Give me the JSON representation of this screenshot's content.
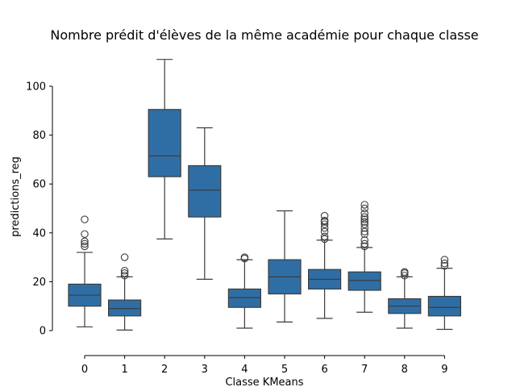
{
  "chart_data": {
    "type": "boxplot",
    "title": "Nombre prédit d'élèves de la même académie pour chaque classe",
    "xlabel": "Classe KMeans",
    "ylabel": "predictions_reg",
    "ylim": [
      -10,
      115
    ],
    "yticks": [
      0,
      20,
      40,
      60,
      80,
      100
    ],
    "categories": [
      "0",
      "1",
      "2",
      "3",
      "4",
      "5",
      "6",
      "7",
      "8",
      "9"
    ],
    "box_color": "#2f6ea5",
    "grid": false,
    "boxes": [
      {
        "category": "0",
        "whisker_low": 1.5,
        "q1": 10,
        "median": 14.5,
        "q3": 19,
        "whisker_high": 32,
        "outliers": [
          34.5,
          35.5,
          36.5,
          39.5,
          45.5
        ]
      },
      {
        "category": "1",
        "whisker_low": 0.2,
        "q1": 6,
        "median": 9,
        "q3": 12.5,
        "whisker_high": 22,
        "outliers": [
          22.5,
          23.5,
          24.5,
          30
        ]
      },
      {
        "category": "2",
        "whisker_low": 37.5,
        "q1": 63,
        "median": 71.5,
        "q3": 90.5,
        "whisker_high": 111,
        "outliers": []
      },
      {
        "category": "3",
        "whisker_low": 21,
        "q1": 46.5,
        "median": 57.5,
        "q3": 67.5,
        "whisker_high": 83,
        "outliers": []
      },
      {
        "category": "4",
        "whisker_low": 1,
        "q1": 9.5,
        "median": 13.5,
        "q3": 17,
        "whisker_high": 29,
        "outliers": [
          29.5,
          30
        ]
      },
      {
        "category": "5",
        "whisker_low": 3.5,
        "q1": 15,
        "median": 22,
        "q3": 29,
        "whisker_high": 49,
        "outliers": []
      },
      {
        "category": "6",
        "whisker_low": 5,
        "q1": 17,
        "median": 21,
        "q3": 25,
        "whisker_high": 37,
        "outliers": [
          37.5,
          38.5,
          40.5,
          42,
          43.5,
          44.5,
          45,
          47
        ]
      },
      {
        "category": "7",
        "whisker_low": 7.5,
        "q1": 16.5,
        "median": 20.5,
        "q3": 24,
        "whisker_high": 34,
        "outliers": [
          34.5,
          35.5,
          37,
          39.5,
          40.5,
          42,
          43.5,
          44.5,
          45.5,
          46.5,
          48,
          50,
          51.5
        ]
      },
      {
        "category": "8",
        "whisker_low": 1,
        "q1": 7,
        "median": 10,
        "q3": 13,
        "whisker_high": 22,
        "outliers": [
          22.5,
          23.5,
          24
        ]
      },
      {
        "category": "9",
        "whisker_low": 0.5,
        "q1": 6,
        "median": 9.5,
        "q3": 14,
        "whisker_high": 25.5,
        "outliers": [
          26.5,
          27.5,
          29
        ]
      }
    ]
  }
}
